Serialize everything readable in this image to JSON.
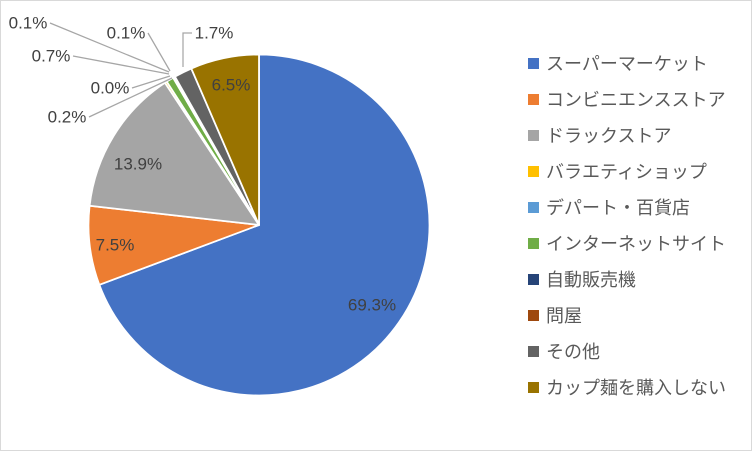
{
  "chart_data": {
    "type": "pie",
    "title": "",
    "categories": [
      "スーパーマーケット",
      "コンビニエンスストア",
      "ドラックストア",
      "バラエティショップ",
      "デパート・百貨店",
      "インターネットサイト",
      "自動販売機",
      "問屋",
      "その他",
      "カップ麺を購入しない"
    ],
    "values": [
      69.3,
      7.5,
      13.9,
      0.2,
      0.0,
      0.7,
      0.1,
      0.1,
      1.7,
      6.5
    ],
    "unit": "%",
    "data_labels": [
      "69.3%",
      "7.5%",
      "13.9%",
      "0.2%",
      "0.0%",
      "0.7%",
      "0.1%",
      "0.1%",
      "1.7%",
      "6.5%"
    ],
    "colors": [
      "#4472C4",
      "#ED7D31",
      "#A5A5A5",
      "#FFC000",
      "#5B9BD5",
      "#70AD47",
      "#264478",
      "#9E480E",
      "#636363",
      "#997300"
    ],
    "start_angle_deg": 0,
    "direction": "clockwise",
    "legend_position": "right",
    "label_color": "#404040",
    "leader_line_color": "#A6A6A6",
    "slice_border_color": "#FFFFFF"
  },
  "legend": {
    "text_color": "#595959",
    "items": [
      {
        "label": "スーパーマーケット"
      },
      {
        "label": "コンビニエンスストア"
      },
      {
        "label": "ドラックストア"
      },
      {
        "label": "バラエティショップ"
      },
      {
        "label": "デパート・百貨店"
      },
      {
        "label": "インターネットサイト"
      },
      {
        "label": "自動販売機"
      },
      {
        "label": "問屋"
      },
      {
        "label": "その他"
      },
      {
        "label": "カップ麺を購入しない"
      }
    ]
  },
  "frame": {
    "border_color": "#D9D9D9",
    "background": "#FFFFFF"
  }
}
